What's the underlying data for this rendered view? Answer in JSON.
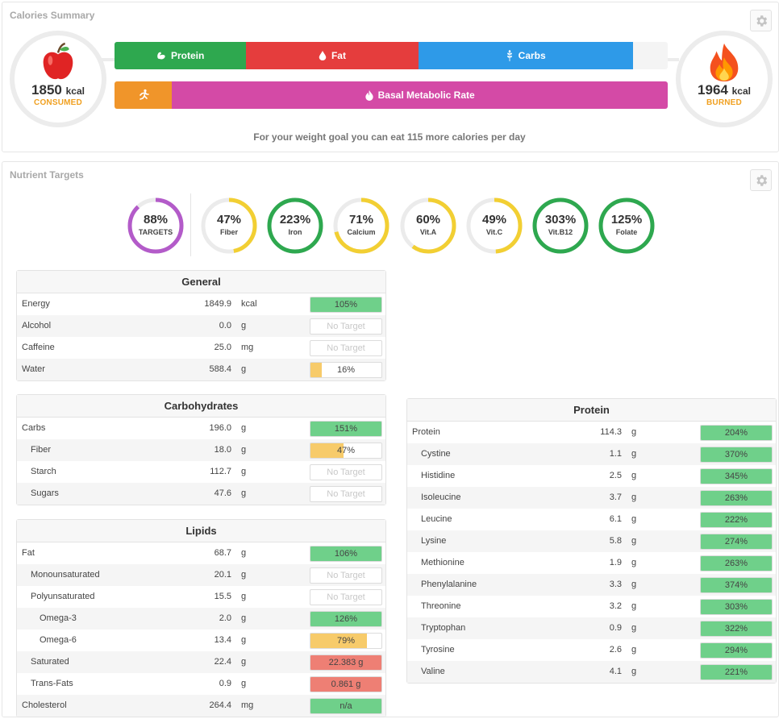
{
  "calories_summary": {
    "title": "Calories Summary",
    "consumed": {
      "value": "1850",
      "unit": "kcal",
      "label": "CONSUMED"
    },
    "burned": {
      "value": "1964",
      "unit": "kcal",
      "label": "BURNED"
    },
    "macro_bar": [
      {
        "label": "Protein",
        "color": "#2ea84f",
        "icon": "flexed-arm-icon",
        "fraction": 0.238
      },
      {
        "label": "Fat",
        "color": "#e53d3d",
        "icon": "drop-icon",
        "fraction": 0.311
      },
      {
        "label": "Carbs",
        "color": "#2e9ae8",
        "icon": "wheat-icon",
        "fraction": 0.388
      }
    ],
    "burn_bar": [
      {
        "label": "",
        "color": "#f0952a",
        "icon": "running-icon",
        "fraction": 0.104
      },
      {
        "label": "Basal Metabolic Rate",
        "color": "#d44aa6",
        "icon": "flame-icon",
        "fraction": 0.896
      }
    ],
    "goal_text": "For your weight goal you can eat 115 more calories per day"
  },
  "nutrient_targets": {
    "title": "Nutrient Targets",
    "rings": [
      {
        "pct": "88%",
        "label": "TARGETS",
        "value": 0.88,
        "color": "#b35bc9"
      },
      {
        "pct": "47%",
        "label": "Fiber",
        "value": 0.47,
        "color": "#f2cf33"
      },
      {
        "pct": "223%",
        "label": "Iron",
        "value": 1.0,
        "color": "#2ea84f"
      },
      {
        "pct": "71%",
        "label": "Calcium",
        "value": 0.71,
        "color": "#f2cf33"
      },
      {
        "pct": "60%",
        "label": "Vit.A",
        "value": 0.6,
        "color": "#f2cf33"
      },
      {
        "pct": "49%",
        "label": "Vit.C",
        "value": 0.49,
        "color": "#f2cf33"
      },
      {
        "pct": "303%",
        "label": "Vit.B12",
        "value": 1.0,
        "color": "#2ea84f"
      },
      {
        "pct": "125%",
        "label": "Folate",
        "value": 1.0,
        "color": "#2ea84f"
      }
    ]
  },
  "tables": {
    "general": {
      "title": "General",
      "rows": [
        {
          "name": "Energy",
          "value": "1849.9",
          "unit": "kcal",
          "target": "105%",
          "fill": 1.0,
          "color": "#6fd08a",
          "indent": 0
        },
        {
          "name": "Alcohol",
          "value": "0.0",
          "unit": "g",
          "target": "No Target",
          "fill": 0,
          "color": "",
          "indent": 0
        },
        {
          "name": "Caffeine",
          "value": "25.0",
          "unit": "mg",
          "target": "No Target",
          "fill": 0,
          "color": "",
          "indent": 0
        },
        {
          "name": "Water",
          "value": "588.4",
          "unit": "g",
          "target": "16%",
          "fill": 0.16,
          "color": "#f7cb6a",
          "indent": 0
        }
      ]
    },
    "carbohydrates": {
      "title": "Carbohydrates",
      "rows": [
        {
          "name": "Carbs",
          "value": "196.0",
          "unit": "g",
          "target": "151%",
          "fill": 1.0,
          "color": "#6fd08a",
          "indent": 0
        },
        {
          "name": "Fiber",
          "value": "18.0",
          "unit": "g",
          "target": "47%",
          "fill": 0.47,
          "color": "#f7cb6a",
          "indent": 1
        },
        {
          "name": "Starch",
          "value": "112.7",
          "unit": "g",
          "target": "No Target",
          "fill": 0,
          "color": "",
          "indent": 1
        },
        {
          "name": "Sugars",
          "value": "47.6",
          "unit": "g",
          "target": "No Target",
          "fill": 0,
          "color": "",
          "indent": 1
        }
      ]
    },
    "lipids": {
      "title": "Lipids",
      "rows": [
        {
          "name": "Fat",
          "value": "68.7",
          "unit": "g",
          "target": "106%",
          "fill": 1.0,
          "color": "#6fd08a",
          "indent": 0
        },
        {
          "name": "Monounsaturated",
          "value": "20.1",
          "unit": "g",
          "target": "No Target",
          "fill": 0,
          "color": "",
          "indent": 1
        },
        {
          "name": "Polyunsaturated",
          "value": "15.5",
          "unit": "g",
          "target": "No Target",
          "fill": 0,
          "color": "",
          "indent": 1
        },
        {
          "name": "Omega-3",
          "value": "2.0",
          "unit": "g",
          "target": "126%",
          "fill": 1.0,
          "color": "#6fd08a",
          "indent": 2
        },
        {
          "name": "Omega-6",
          "value": "13.4",
          "unit": "g",
          "target": "79%",
          "fill": 0.79,
          "color": "#f7cb6a",
          "indent": 2
        },
        {
          "name": "Saturated",
          "value": "22.4",
          "unit": "g",
          "target": "22.383 g",
          "fill": 1.0,
          "color": "#ee7f74",
          "indent": 1
        },
        {
          "name": "Trans-Fats",
          "value": "0.9",
          "unit": "g",
          "target": "0.861 g",
          "fill": 1.0,
          "color": "#ee7f74",
          "indent": 1
        },
        {
          "name": "Cholesterol",
          "value": "264.4",
          "unit": "mg",
          "target": "n/a",
          "fill": 1.0,
          "color": "#6fd08a",
          "indent": 0
        }
      ]
    },
    "protein": {
      "title": "Protein",
      "rows": [
        {
          "name": "Protein",
          "value": "114.3",
          "unit": "g",
          "target": "204%",
          "fill": 1.0,
          "color": "#6fd08a",
          "indent": 0
        },
        {
          "name": "Cystine",
          "value": "1.1",
          "unit": "g",
          "target": "370%",
          "fill": 1.0,
          "color": "#6fd08a",
          "indent": 1
        },
        {
          "name": "Histidine",
          "value": "2.5",
          "unit": "g",
          "target": "345%",
          "fill": 1.0,
          "color": "#6fd08a",
          "indent": 1
        },
        {
          "name": "Isoleucine",
          "value": "3.7",
          "unit": "g",
          "target": "263%",
          "fill": 1.0,
          "color": "#6fd08a",
          "indent": 1
        },
        {
          "name": "Leucine",
          "value": "6.1",
          "unit": "g",
          "target": "222%",
          "fill": 1.0,
          "color": "#6fd08a",
          "indent": 1
        },
        {
          "name": "Lysine",
          "value": "5.8",
          "unit": "g",
          "target": "274%",
          "fill": 1.0,
          "color": "#6fd08a",
          "indent": 1
        },
        {
          "name": "Methionine",
          "value": "1.9",
          "unit": "g",
          "target": "263%",
          "fill": 1.0,
          "color": "#6fd08a",
          "indent": 1
        },
        {
          "name": "Phenylalanine",
          "value": "3.3",
          "unit": "g",
          "target": "374%",
          "fill": 1.0,
          "color": "#6fd08a",
          "indent": 1
        },
        {
          "name": "Threonine",
          "value": "3.2",
          "unit": "g",
          "target": "303%",
          "fill": 1.0,
          "color": "#6fd08a",
          "indent": 1
        },
        {
          "name": "Tryptophan",
          "value": "0.9",
          "unit": "g",
          "target": "322%",
          "fill": 1.0,
          "color": "#6fd08a",
          "indent": 1
        },
        {
          "name": "Tyrosine",
          "value": "2.6",
          "unit": "g",
          "target": "294%",
          "fill": 1.0,
          "color": "#6fd08a",
          "indent": 1
        },
        {
          "name": "Valine",
          "value": "4.1",
          "unit": "g",
          "target": "221%",
          "fill": 1.0,
          "color": "#6fd08a",
          "indent": 1
        }
      ]
    }
  }
}
